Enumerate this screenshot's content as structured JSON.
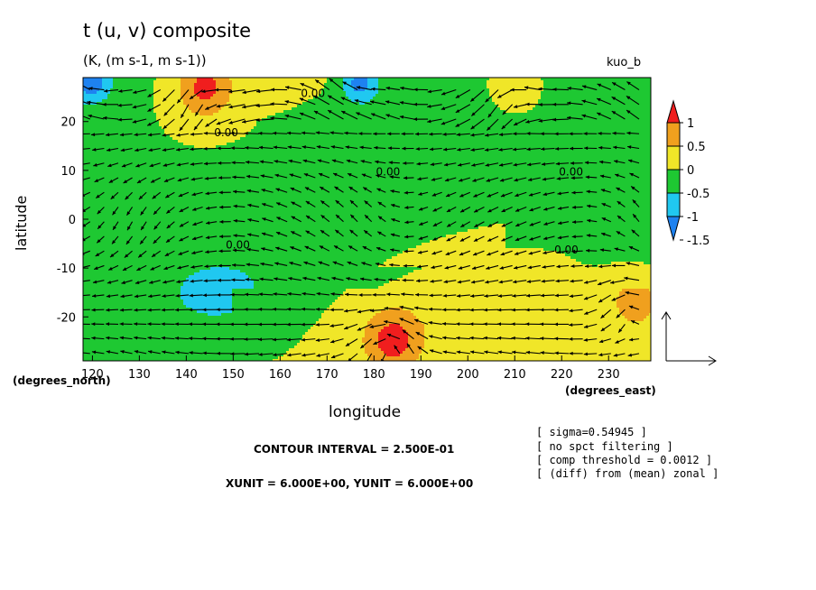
{
  "header": {
    "title": "t (u, v) composite",
    "units": "(K, (m s-1, m s-1))",
    "tag": "kuo_b"
  },
  "footer": {
    "contour_interval": "CONTOUR INTERVAL = 2.500E-01",
    "units_line": "XUNIT = 6.000E+00, YUNIT = 6.000E+00"
  },
  "info": {
    "sigma": "[ sigma=0.54945 ]",
    "filtering": "[ no spct filtering ]",
    "threshold": "[ comp threshold = 0.0012 ]",
    "diff": "[ (diff) from (mean) zonal ]"
  },
  "chart_data": {
    "type": "heatmap",
    "title": "t (u, v) composite",
    "subtitle": "(K, (m s-1, m s-1))",
    "xlabel": "longitude",
    "ylabel": "latitude",
    "x_unit_label": "(degrees_east)",
    "y_unit_label": "(degrees_north)",
    "xlim": [
      118,
      239
    ],
    "ylim": [
      -29,
      29
    ],
    "x_ticks": [
      120,
      130,
      140,
      150,
      160,
      170,
      180,
      190,
      200,
      210,
      220,
      230
    ],
    "y_ticks": [
      20,
      10,
      0,
      -10,
      -20
    ],
    "contour_labels": [
      {
        "text": "0.00",
        "x": 148.5,
        "y": 17
      },
      {
        "text": "0.00",
        "x": 167,
        "y": 25
      },
      {
        "text": "0.00",
        "x": 183,
        "y": 9
      },
      {
        "text": "0.00",
        "x": 151,
        "y": -6
      },
      {
        "text": "0.00",
        "x": 221,
        "y": -7
      },
      {
        "text": "0.00",
        "x": 222,
        "y": 9
      }
    ],
    "colorbar": {
      "levels": [
        -1.5,
        -1,
        -0.5,
        0,
        0.5,
        1
      ],
      "tick_labels": [
        "1",
        "0.5",
        "0",
        "-0.5",
        "-1",
        "-1.5"
      ],
      "colors": [
        "#1e82f0",
        "#20c8f0",
        "#1ec832",
        "#f0e628",
        "#f0a01e",
        "#f01e1e"
      ]
    },
    "colors": {
      "green": "#1ec832",
      "yellow": "#f0e628",
      "orange": "#f0a01e",
      "red": "#f01e1e",
      "cyan": "#20c8f0",
      "blue": "#1e82f0"
    },
    "features": [
      {
        "kind": "warm",
        "x": 144,
        "y": 27,
        "max": 1.0
      },
      {
        "kind": "warm",
        "x": 184,
        "y": -25,
        "max": 1.0
      },
      {
        "kind": "warm",
        "x": 236,
        "y": -17,
        "max": 0.5
      },
      {
        "kind": "warm",
        "x": 210,
        "y": 27,
        "max": 0.5
      },
      {
        "kind": "cold",
        "x": 120,
        "y": 28,
        "min": -1.0
      },
      {
        "kind": "cold",
        "x": 177,
        "y": 28,
        "min": -1.0
      }
    ],
    "reference_vector": {
      "u": 6,
      "v": 6
    }
  }
}
